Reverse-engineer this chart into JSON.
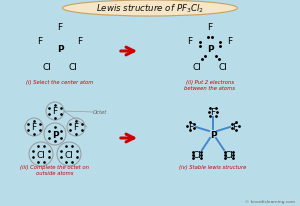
{
  "bg_color": "#b8dce8",
  "title_bg": "#f5e6c8",
  "title_edge": "#c8a060",
  "arrow_color": "#cc0000",
  "label_color": "#cc0000",
  "bond_color": "#4488cc",
  "dot_color": "#000000",
  "circle_color": "#999999",
  "octet_color": "#666666",
  "watermark_color": "#666666",
  "watermark": "© knordislearning.com",
  "panel_labels": [
    "(i) Select the center atom",
    "(ii) Put 2 electrons\nbetween the atoms",
    "(iii) Complete the octet on\noutside atoms",
    "(iv) Stable lewis structure"
  ],
  "title_text": "Lewis structure of PF",
  "title_sub1": "3",
  "title_mid": "Cl",
  "title_sub2": "2"
}
